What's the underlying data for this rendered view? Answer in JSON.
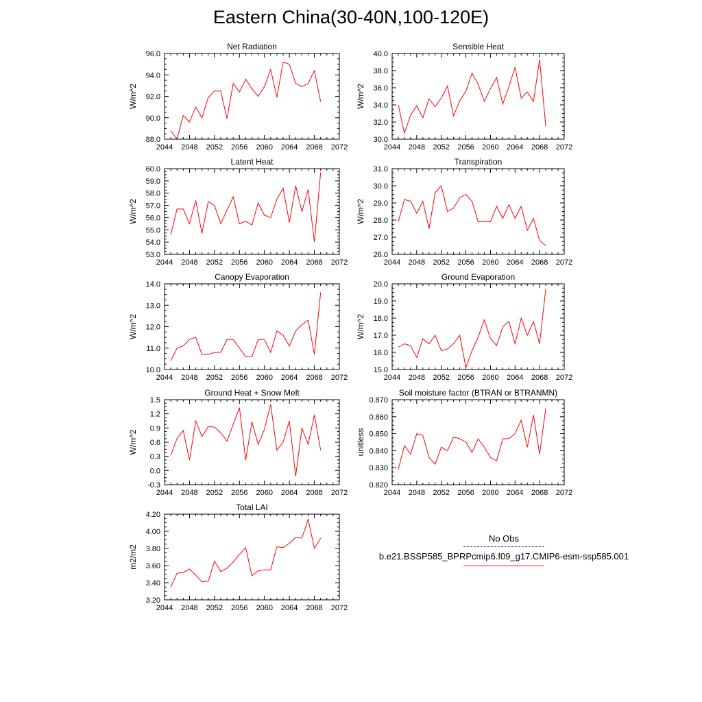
{
  "figure": {
    "title": "Eastern China(30-40N,100-120E)"
  },
  "legend": {
    "entries": [
      {
        "label": "No Obs",
        "color": "#3333aa",
        "style": "dashed"
      },
      {
        "label": "b.e21.BSSP585_BPRPcmip6.f09_g17.CMIP6-esm-ssp585.001",
        "color": "#ff0000",
        "style": "solid"
      }
    ]
  },
  "chart_data": [
    {
      "type": "line",
      "title": "Net Radiation",
      "ylabel": "W/m^2",
      "xlim": [
        2044,
        2072
      ],
      "xticks": [
        2044,
        2048,
        2052,
        2056,
        2060,
        2064,
        2068,
        2072
      ],
      "ylim": [
        88.0,
        96.0
      ],
      "yticks": [
        "88.0",
        "90.0",
        "92.0",
        "94.0",
        "96.0"
      ],
      "color": "#ff0000",
      "x": [
        2045,
        2046,
        2047,
        2048,
        2049,
        2050,
        2051,
        2052,
        2053,
        2054,
        2055,
        2056,
        2057,
        2058,
        2059,
        2060,
        2061,
        2062,
        2063,
        2064,
        2065,
        2066,
        2067,
        2068,
        2069
      ],
      "y": [
        88.8,
        88.0,
        90.2,
        89.6,
        91.0,
        90.0,
        91.9,
        92.5,
        92.5,
        89.9,
        93.2,
        92.4,
        93.6,
        92.7,
        92.0,
        92.9,
        94.5,
        91.9,
        95.2,
        95.0,
        93.2,
        92.9,
        93.2,
        94.4,
        91.5
      ]
    },
    {
      "type": "line",
      "title": "Sensible Heat",
      "ylabel": "W/m^2",
      "xlim": [
        2044,
        2072
      ],
      "xticks": [
        2044,
        2048,
        2052,
        2056,
        2060,
        2064,
        2068,
        2072
      ],
      "ylim": [
        30.0,
        40.0
      ],
      "yticks": [
        "30.0",
        "32.0",
        "34.0",
        "36.0",
        "38.0",
        "40.0"
      ],
      "color": "#ff0000",
      "x": [
        2045,
        2046,
        2047,
        2048,
        2049,
        2050,
        2051,
        2052,
        2053,
        2054,
        2055,
        2056,
        2057,
        2058,
        2059,
        2060,
        2061,
        2062,
        2063,
        2064,
        2065,
        2066,
        2067,
        2068,
        2069
      ],
      "y": [
        34.0,
        30.7,
        32.8,
        33.9,
        32.5,
        34.7,
        33.8,
        34.8,
        36.2,
        32.7,
        34.5,
        35.6,
        37.7,
        36.4,
        34.4,
        35.9,
        37.2,
        34.1,
        36.1,
        38.4,
        34.8,
        35.5,
        34.4,
        39.3,
        31.5
      ]
    },
    {
      "type": "line",
      "title": "Latent Heat",
      "ylabel": "W/m^2",
      "xlim": [
        2044,
        2072
      ],
      "xticks": [
        2044,
        2048,
        2052,
        2056,
        2060,
        2064,
        2068,
        2072
      ],
      "ylim": [
        53.0,
        60.0
      ],
      "yticks": [
        "53.0",
        "54.0",
        "55.0",
        "56.0",
        "57.0",
        "58.0",
        "59.0",
        "60.0"
      ],
      "color": "#ff0000",
      "x": [
        2045,
        2046,
        2047,
        2048,
        2049,
        2050,
        2051,
        2052,
        2053,
        2054,
        2055,
        2056,
        2057,
        2058,
        2059,
        2060,
        2061,
        2062,
        2063,
        2064,
        2065,
        2066,
        2067,
        2068,
        2069
      ],
      "y": [
        54.6,
        56.7,
        56.7,
        55.5,
        57.4,
        54.7,
        57.3,
        57.0,
        55.5,
        56.6,
        57.7,
        55.5,
        55.7,
        55.4,
        57.2,
        56.2,
        56.0,
        57.5,
        58.4,
        55.6,
        58.6,
        56.5,
        58.3,
        54.0,
        59.7
      ]
    },
    {
      "type": "line",
      "title": "Transpiration",
      "ylabel": "W/m^2",
      "xlim": [
        2044,
        2072
      ],
      "xticks": [
        2044,
        2048,
        2052,
        2056,
        2060,
        2064,
        2068,
        2072
      ],
      "ylim": [
        26.0,
        31.0
      ],
      "yticks": [
        "26.0",
        "27.0",
        "28.0",
        "29.0",
        "30.0",
        "31.0"
      ],
      "color": "#ff0000",
      "x": [
        2045,
        2046,
        2047,
        2048,
        2049,
        2050,
        2051,
        2052,
        2053,
        2054,
        2055,
        2056,
        2057,
        2058,
        2059,
        2060,
        2061,
        2062,
        2063,
        2064,
        2065,
        2066,
        2067,
        2068,
        2069
      ],
      "y": [
        27.9,
        29.2,
        29.1,
        28.4,
        29.1,
        27.5,
        29.6,
        30.0,
        28.5,
        28.7,
        29.3,
        29.5,
        29.1,
        27.9,
        27.9,
        27.9,
        28.8,
        28.1,
        28.9,
        28.1,
        28.8,
        27.4,
        28.1,
        26.8,
        26.5
      ]
    },
    {
      "type": "line",
      "title": "Canopy Evaporation",
      "ylabel": "W/m^2",
      "xlim": [
        2044,
        2072
      ],
      "xticks": [
        2044,
        2048,
        2052,
        2056,
        2060,
        2064,
        2068,
        2072
      ],
      "ylim": [
        10.0,
        14.0
      ],
      "yticks": [
        "10.0",
        "11.0",
        "12.0",
        "13.0",
        "14.0"
      ],
      "color": "#ff0000",
      "x": [
        2045,
        2046,
        2047,
        2048,
        2049,
        2050,
        2051,
        2052,
        2053,
        2054,
        2055,
        2056,
        2057,
        2058,
        2059,
        2060,
        2061,
        2062,
        2063,
        2064,
        2065,
        2066,
        2067,
        2068,
        2069
      ],
      "y": [
        10.4,
        11.0,
        11.1,
        11.4,
        11.5,
        10.7,
        10.7,
        10.8,
        10.8,
        11.4,
        11.4,
        11.0,
        10.6,
        10.6,
        11.4,
        11.4,
        10.8,
        11.8,
        11.6,
        11.1,
        11.8,
        12.1,
        12.3,
        10.7,
        13.6
      ]
    },
    {
      "type": "line",
      "title": "Ground Evaporation",
      "ylabel": "W/m^2",
      "xlim": [
        2044,
        2072
      ],
      "xticks": [
        2044,
        2048,
        2052,
        2056,
        2060,
        2064,
        2068,
        2072
      ],
      "ylim": [
        15.0,
        20.0
      ],
      "yticks": [
        "15.0",
        "16.0",
        "17.0",
        "18.0",
        "19.0",
        "20.0"
      ],
      "color": "#ff0000",
      "x": [
        2045,
        2046,
        2047,
        2048,
        2049,
        2050,
        2051,
        2052,
        2053,
        2054,
        2055,
        2056,
        2057,
        2058,
        2059,
        2060,
        2061,
        2062,
        2063,
        2064,
        2065,
        2066,
        2067,
        2068,
        2069
      ],
      "y": [
        16.3,
        16.5,
        16.4,
        15.7,
        16.8,
        16.5,
        17.0,
        16.1,
        16.2,
        16.5,
        17.0,
        15.1,
        16.1,
        16.9,
        17.9,
        16.8,
        16.4,
        17.5,
        17.8,
        16.5,
        18.0,
        17.0,
        17.8,
        16.5,
        19.7
      ]
    },
    {
      "type": "line",
      "title": "Ground Heat + Snow Melt",
      "ylabel": "W/m^2",
      "xlim": [
        2044,
        2072
      ],
      "xticks": [
        2044,
        2048,
        2052,
        2056,
        2060,
        2064,
        2068,
        2072
      ],
      "ylim": [
        -0.3,
        1.5
      ],
      "yticks": [
        "-0.3",
        "0.0",
        "0.3",
        "0.6",
        "0.9",
        "1.2",
        "1.5"
      ],
      "color": "#ff0000",
      "x": [
        2045,
        2046,
        2047,
        2048,
        2049,
        2050,
        2051,
        2052,
        2053,
        2054,
        2055,
        2056,
        2057,
        2058,
        2059,
        2060,
        2061,
        2062,
        2063,
        2064,
        2065,
        2066,
        2067,
        2068,
        2069
      ],
      "y": [
        0.32,
        0.68,
        0.85,
        0.22,
        1.05,
        0.72,
        0.93,
        0.92,
        0.8,
        0.62,
        0.98,
        1.33,
        0.22,
        1.03,
        0.55,
        0.87,
        1.4,
        0.43,
        0.6,
        1.05,
        -0.12,
        0.9,
        0.55,
        1.18,
        0.43
      ]
    },
    {
      "type": "line",
      "title": "Soil moisture factor (BTRAN or BTRANMN)",
      "ylabel": "unitless",
      "xlim": [
        2044,
        2072
      ],
      "xticks": [
        2044,
        2048,
        2052,
        2056,
        2060,
        2064,
        2068,
        2072
      ],
      "ylim": [
        0.82,
        0.87
      ],
      "yticks": [
        "0.820",
        "0.830",
        "0.840",
        "0.850",
        "0.860",
        "0.870"
      ],
      "color": "#ff0000",
      "x": [
        2045,
        2046,
        2047,
        2048,
        2049,
        2050,
        2051,
        2052,
        2053,
        2054,
        2055,
        2056,
        2057,
        2058,
        2059,
        2060,
        2061,
        2062,
        2063,
        2064,
        2065,
        2066,
        2067,
        2068,
        2069
      ],
      "y": [
        0.829,
        0.843,
        0.838,
        0.85,
        0.849,
        0.836,
        0.832,
        0.842,
        0.84,
        0.848,
        0.847,
        0.845,
        0.839,
        0.847,
        0.842,
        0.836,
        0.834,
        0.847,
        0.847,
        0.85,
        0.858,
        0.842,
        0.861,
        0.838,
        0.865
      ]
    },
    {
      "type": "line",
      "title": "Total LAI",
      "ylabel": "m2/m2",
      "xlim": [
        2044,
        2072
      ],
      "xticks": [
        2044,
        2048,
        2052,
        2056,
        2060,
        2064,
        2068,
        2072
      ],
      "ylim": [
        3.2,
        4.2
      ],
      "yticks": [
        "3.20",
        "3.40",
        "3.60",
        "3.80",
        "4.00",
        "4.20"
      ],
      "color": "#ff0000",
      "x": [
        2045,
        2046,
        2047,
        2048,
        2049,
        2050,
        2051,
        2052,
        2053,
        2054,
        2055,
        2056,
        2057,
        2058,
        2059,
        2060,
        2061,
        2062,
        2063,
        2064,
        2065,
        2066,
        2067,
        2068,
        2069
      ],
      "y": [
        3.35,
        3.51,
        3.52,
        3.56,
        3.49,
        3.41,
        3.42,
        3.65,
        3.53,
        3.57,
        3.64,
        3.73,
        3.81,
        3.48,
        3.54,
        3.55,
        3.55,
        3.82,
        3.81,
        3.86,
        3.93,
        3.92,
        4.14,
        3.8,
        3.92
      ]
    }
  ]
}
